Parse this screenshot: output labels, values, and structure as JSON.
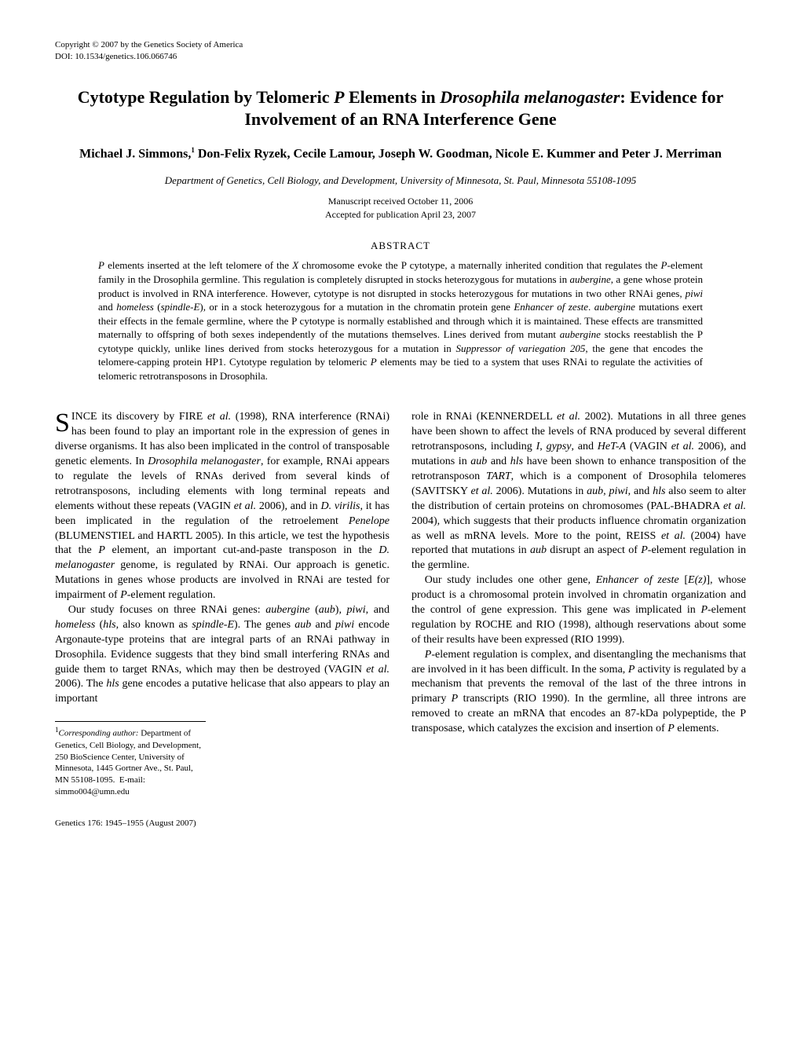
{
  "copyright": {
    "line1": "Copyright © 2007 by the Genetics Society of America",
    "line2": "DOI: 10.1534/genetics.106.066746"
  },
  "title_html": "Cytotype Regulation by Telomeric <span class='italic'>P</span> Elements in <span class='italic'>Drosophila melanogaster</span>: Evidence for Involvement of an RNA Interference Gene",
  "authors_html": "Michael J. Simmons,<sup>1</sup> Don-Felix Ryzek, Cecile Lamour, Joseph W. Goodman, Nicole E. Kummer and Peter J. Merriman",
  "affiliation": "Department of Genetics, Cell Biology, and Development, University of Minnesota, St. Paul, Minnesota 55108-1095",
  "dates": {
    "received": "Manuscript received October 11, 2006",
    "accepted": "Accepted for publication April 23, 2007"
  },
  "abstract_heading": "ABSTRACT",
  "abstract_html": "<span class='italic'>P</span> elements inserted at the left telomere of the <span class='italic'>X</span> chromosome evoke the P cytotype, a maternally inherited condition that regulates the <span class='italic'>P</span>-element family in the Drosophila germline. This regulation is completely disrupted in stocks heterozygous for mutations in <span class='italic'>aubergine</span>, a gene whose protein product is involved in RNA interference. However, cytotype is not disrupted in stocks heterozygous for mutations in two other RNAi genes, <span class='italic'>piwi</span> and <span class='italic'>homeless</span> (<span class='italic'>spindle-E</span>), or in a stock heterozygous for a mutation in the chromatin protein gene <span class='italic'>Enhancer of zeste</span>. <span class='italic'>aubergine</span> mutations exert their effects in the female germline, where the P cytotype is normally established and through which it is maintained. These effects are transmitted maternally to offspring of both sexes independently of the mutations themselves. Lines derived from mutant <span class='italic'>aubergine</span> stocks reestablish the P cytotype quickly, unlike lines derived from stocks heterozygous for a mutation in <span class='italic'>Suppressor of variegation 205</span>, the gene that encodes the telomere-capping protein HP1. Cytotype regulation by telomeric <span class='italic'>P</span> elements may be tied to a system that uses RNAi to regulate the activities of telomeric retrotransposons in Drosophila.",
  "body": {
    "p1_html": "<span class='dropcap'>S</span>INCE its discovery by FIRE <span class='italic'>et al.</span> (1998), RNA interference (RNAi) has been found to play an important role in the expression of genes in diverse organisms. It has also been implicated in the control of transposable genetic elements. In <span class='italic'>Drosophila melanogaster</span>, for example, RNAi appears to regulate the levels of RNAs derived from several kinds of retrotransposons, including elements with long terminal repeats and elements without these repeats (VAGIN <span class='italic'>et al.</span> 2006), and in <span class='italic'>D. virilis</span>, it has been implicated in the regulation of the retroelement <span class='italic'>Penelope</span> (BLUMENSTIEL and HARTL 2005). In this article, we test the hypothesis that the <span class='italic'>P</span> element, an important cut-and-paste transposon in the <span class='italic'>D. melanogaster</span> genome, is regulated by RNAi. Our approach is genetic. Mutations in genes whose products are involved in RNAi are tested for impairment of <span class='italic'>P</span>-element regulation.",
    "p2_html": "Our study focuses on three RNAi genes: <span class='italic'>aubergine</span> (<span class='italic'>aub</span>), <span class='italic'>piwi</span>, and <span class='italic'>homeless</span> (<span class='italic'>hls</span>, also known as <span class='italic'>spindle-E</span>). The genes <span class='italic'>aub</span> and <span class='italic'>piwi</span> encode Argonaute-type proteins that are integral parts of an RNAi pathway in Drosophila. Evidence suggests that they bind small interfering RNAs and guide them to target RNAs, which may then be destroyed (VAGIN <span class='italic'>et al.</span> 2006). The <span class='italic'>hls</span> gene encodes a putative helicase that also appears to play an important",
    "p3_html": "role in RNAi (KENNERDELL <span class='italic'>et al.</span> 2002). Mutations in all three genes have been shown to affect the levels of RNA produced by several different retrotransposons, including <span class='italic'>I</span>, <span class='italic'>gypsy</span>, and <span class='italic'>HeT-A</span> (VAGIN <span class='italic'>et al.</span> 2006), and mutations in <span class='italic'>aub</span> and <span class='italic'>hls</span> have been shown to enhance transposition of the retrotransposon <span class='italic'>TART</span>, which is a component of Drosophila telomeres (SAVITSKY <span class='italic'>et al.</span> 2006). Mutations in <span class='italic'>aub</span>, <span class='italic'>piwi</span>, and <span class='italic'>hls</span> also seem to alter the distribution of certain proteins on chromosomes (PAL-BHADRA <span class='italic'>et al.</span> 2004), which suggests that their products influence chromatin organization as well as mRNA levels. More to the point, REISS <span class='italic'>et al.</span> (2004) have reported that mutations in <span class='italic'>aub</span> disrupt an aspect of <span class='italic'>P</span>-element regulation in the germline.",
    "p4_html": "Our study includes one other gene, <span class='italic'>Enhancer of zeste</span> [<span class='italic'>E(z)</span>], whose product is a chromosomal protein involved in chromatin organization and the control of gene expression. This gene was implicated in <span class='italic'>P</span>-element regulation by ROCHE and RIO (1998), although reservations about some of their results have been expressed (RIO 1999).",
    "p5_html": "<span class='italic'>P</span>-element regulation is complex, and disentangling the mechanisms that are involved in it has been difficult. In the soma, <span class='italic'>P</span> activity is regulated by a mechanism that prevents the removal of the last of the three introns in primary <span class='italic'>P</span> transcripts (RIO 1990). In the germline, all three introns are removed to create an mRNA that encodes an 87-kDa polypeptide, the P transposase, which catalyzes the excision and insertion of <span class='italic'>P</span> elements."
  },
  "footnote_html": "<sup>1</sup><span class='italic'>Corresponding author:</span> Department of Genetics, Cell Biology, and Development, 250 BioScience Center, University of Minnesota, 1445 Gortner Ave., St. Paul, MN 55108-1095.&nbsp;&nbsp;E-mail: simmo004@umn.edu",
  "footer": "Genetics 176: 1945–1955 (August 2007)"
}
